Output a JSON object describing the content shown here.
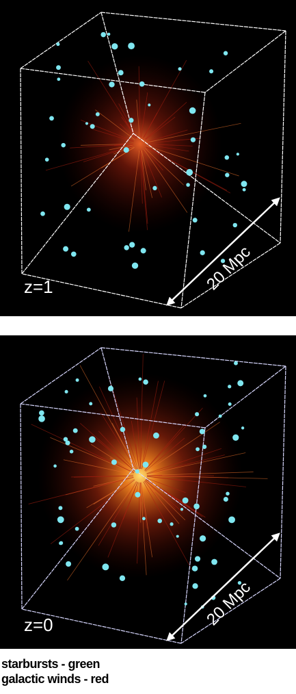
{
  "panels": [
    {
      "label": "z=1",
      "scale": "20 Mpc"
    },
    {
      "label": "z=0",
      "scale": "20 Mpc"
    }
  ],
  "legend": [
    "starbursts - green",
    "galactic winds - red"
  ]
}
